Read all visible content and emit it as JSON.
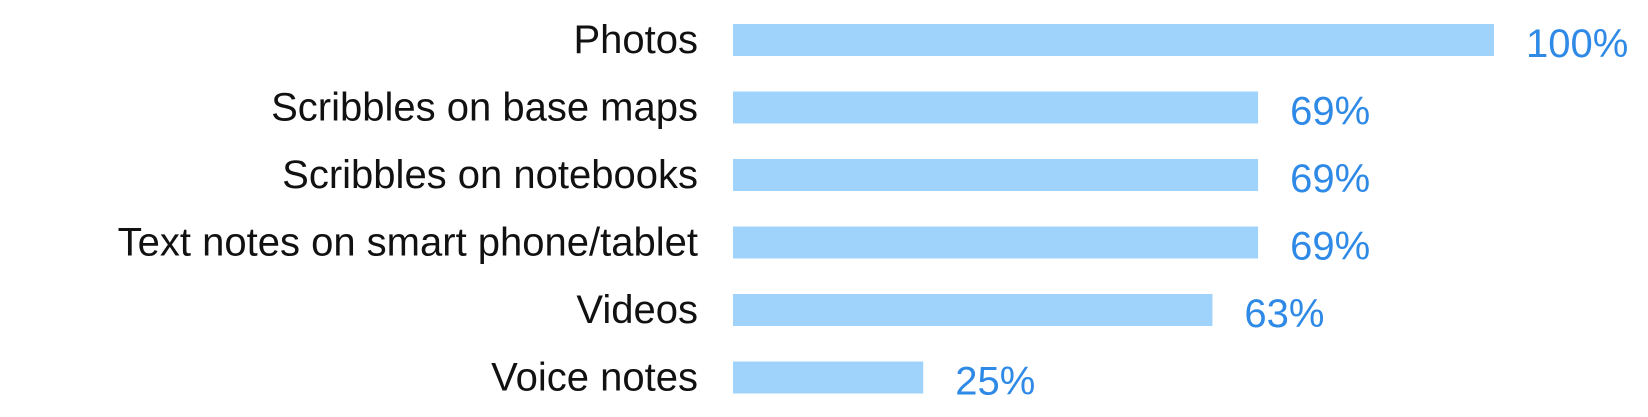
{
  "chart_data": {
    "type": "bar",
    "orientation": "horizontal",
    "categories": [
      "Photos",
      "Scribbles on base maps",
      "Scribbles on notebooks",
      "Text notes on smart phone/tablet",
      "Videos",
      "Voice notes"
    ],
    "values": [
      100,
      69,
      69,
      69,
      63,
      25
    ],
    "value_labels": [
      "100%",
      "69%",
      "69%",
      "69%",
      "63%",
      "25%"
    ],
    "unit": "%",
    "xlim": [
      0,
      100
    ],
    "grid": false,
    "legend": "none",
    "title": "",
    "xlabel": "",
    "ylabel": ""
  },
  "colors": {
    "bar": "#9fd3fb",
    "value_label": "#2e8ae6",
    "category_label": "#111111"
  }
}
